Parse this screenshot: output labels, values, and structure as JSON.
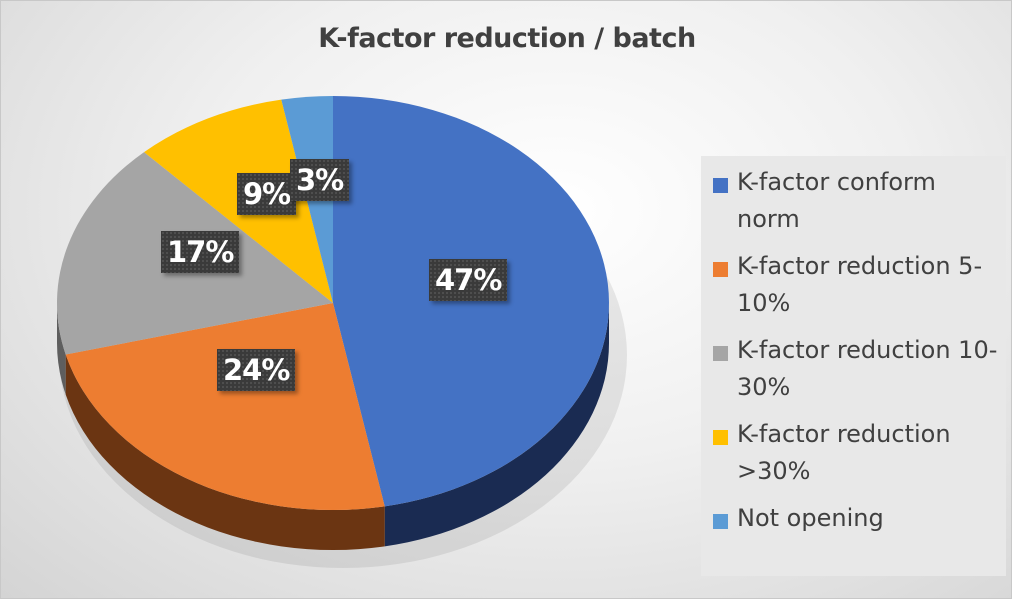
{
  "chart_data": {
    "type": "pie",
    "style": "3d",
    "title": "K-factor reduction / batch",
    "categories": [
      "K-factor conform norm",
      "K-factor reduction 5-10%",
      "K-factor reduction 10-30%",
      "K-factor reduction >30%",
      "Not opening"
    ],
    "values": [
      47,
      24,
      17,
      9,
      3
    ],
    "data_labels": [
      "47%",
      "24%",
      "17%",
      "9%",
      "3%"
    ],
    "colors": [
      "#4472c4",
      "#ed7d31",
      "#a5a5a5",
      "#ffc000",
      "#5b9bd5"
    ],
    "side_colors": [
      "#1a2b52",
      "#6b3512",
      "#5e5e5e",
      "#7a5c00",
      "#2b4a66"
    ],
    "legend_position": "right"
  }
}
